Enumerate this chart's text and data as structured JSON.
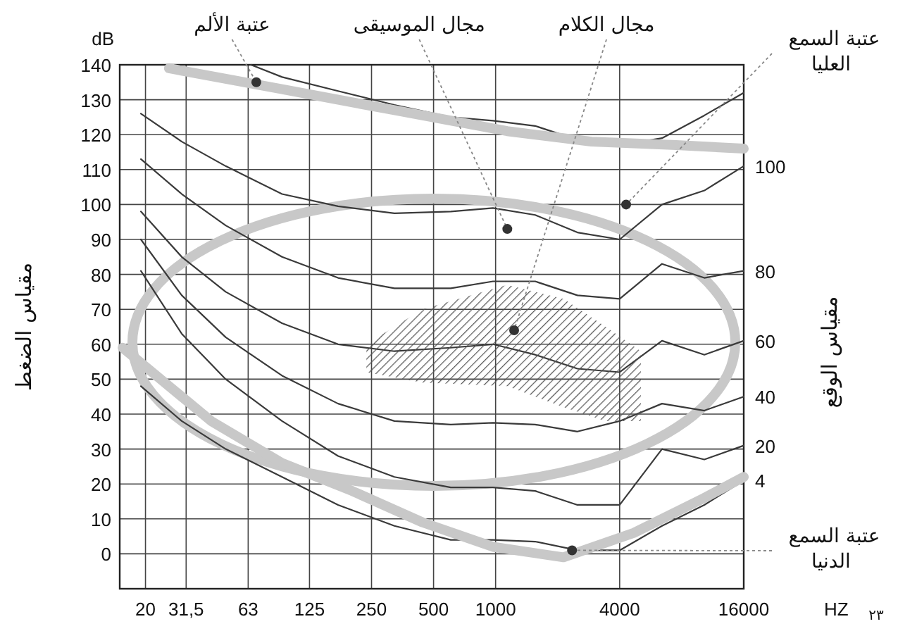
{
  "chart_data": {
    "type": "line",
    "xlabel": "HZ",
    "ylabel": "مقياس الضغط",
    "y2label": "مقياس الوقع",
    "log": "x",
    "xlim": [
      15,
      16000
    ],
    "xticks": [
      20,
      {
        "value": 31.5,
        "label": "31,5"
      },
      63,
      125,
      250,
      500,
      1000,
      4000,
      16000
    ],
    "ylim": [
      -10,
      140
    ],
    "yticks": [
      0,
      10,
      20,
      30,
      40,
      50,
      60,
      70,
      80,
      90,
      100,
      110,
      120,
      130,
      140
    ],
    "grid": true,
    "series": [
      {
        "color": "#3a3a3a",
        "x": [
          65,
          92,
          172,
          323,
          606,
          971,
          1556,
          2495,
          4000,
          6420,
          10300,
          16000
        ],
        "values": [
          140,
          136.5,
          132.5,
          128.5,
          125,
          124,
          122.5,
          118.5,
          117,
          119,
          125.5,
          132
        ]
      },
      {
        "name": "100",
        "color": "#3a3a3a",
        "x": [
          19,
          30,
          49,
          92,
          172,
          323,
          606,
          971,
          1556,
          2495,
          4000,
          6420,
          10300,
          16000
        ],
        "values": [
          126,
          118,
          111,
          103,
          99.5,
          97.5,
          98,
          99,
          97,
          92,
          90,
          100,
          104,
          111
        ]
      },
      {
        "name": "80",
        "color": "#3a3a3a",
        "x": [
          19,
          30,
          49,
          92,
          172,
          323,
          606,
          971,
          1556,
          2495,
          4000,
          6420,
          10300,
          16000
        ],
        "values": [
          113,
          103,
          94,
          85,
          79,
          76,
          76,
          78,
          78,
          74,
          73,
          83,
          79,
          81
        ]
      },
      {
        "name": "60",
        "color": "#3a3a3a",
        "x": [
          19,
          30,
          49,
          92,
          172,
          323,
          606,
          971,
          1556,
          2495,
          4000,
          6420,
          10300,
          16000
        ],
        "values": [
          98,
          85,
          75,
          66,
          60,
          58,
          59,
          60,
          57,
          53,
          52,
          61,
          57,
          61
        ]
      },
      {
        "name": "40",
        "color": "#3a3a3a",
        "x": [
          19,
          30,
          49,
          92,
          172,
          323,
          606,
          971,
          1556,
          2495,
          4000,
          6420,
          10300,
          16000
        ],
        "values": [
          90,
          74,
          62,
          51,
          43,
          38,
          37,
          37.5,
          37,
          35,
          38,
          43,
          41,
          45
        ]
      },
      {
        "name": "20",
        "color": "#3a3a3a",
        "x": [
          19,
          30,
          49,
          92,
          172,
          323,
          606,
          971,
          1556,
          2495,
          4000,
          6420,
          10300,
          16000
        ],
        "values": [
          81,
          63,
          50,
          38,
          28,
          22,
          19,
          19,
          18,
          14,
          14,
          30,
          27,
          31
        ]
      },
      {
        "name": "4",
        "color": "#3a3a3a",
        "x": [
          19,
          30,
          49,
          92,
          172,
          323,
          606,
          971,
          1556,
          2495,
          4000,
          6420,
          10300,
          16000
        ],
        "values": [
          48,
          38,
          30,
          22,
          14,
          8,
          4,
          4,
          3.5,
          1,
          1,
          8,
          14,
          21
        ]
      },
      {
        "color": "#c8c8c8",
        "x": [
          15.5,
          41.7,
          92,
          201,
          442,
          971,
          2134,
          4690,
          10300,
          16000
        ],
        "values": [
          59,
          38,
          26,
          18,
          9,
          2,
          -1,
          6,
          16,
          22
        ]
      },
      {
        "color": "#c8c8c8",
        "x": [
          26,
          92,
          323,
          1138,
          2920,
          7520,
          16000
        ],
        "values": [
          139,
          133,
          127,
          121,
          118,
          117,
          116
        ]
      },
      {
        "type": "area",
        "color": "#555555",
        "x": [
          236,
          442,
          1138,
          2134,
          3420,
          5070,
          5070,
          3420,
          2134,
          1138,
          442,
          236
        ],
        "values": [
          60,
          70,
          77,
          73,
          65,
          58,
          38,
          38,
          42,
          48,
          49,
          52
        ]
      }
    ],
    "annotations": [
      "dB",
      "٢٣",
      {
        "text": "عتبة الألم",
        "x": 69,
        "y": 135
      },
      {
        "text": "مجال الموسيقى",
        "x": 1140,
        "y": 93
      },
      {
        "text": "مجال الكلام",
        "x": 1230,
        "y": 64
      },
      {
        "text": "عتبة السمع العليا",
        "x": 4300,
        "y": 100
      },
      {
        "text": "عتبة السمع الدنيا",
        "x": 2350,
        "y": 1
      }
    ]
  }
}
